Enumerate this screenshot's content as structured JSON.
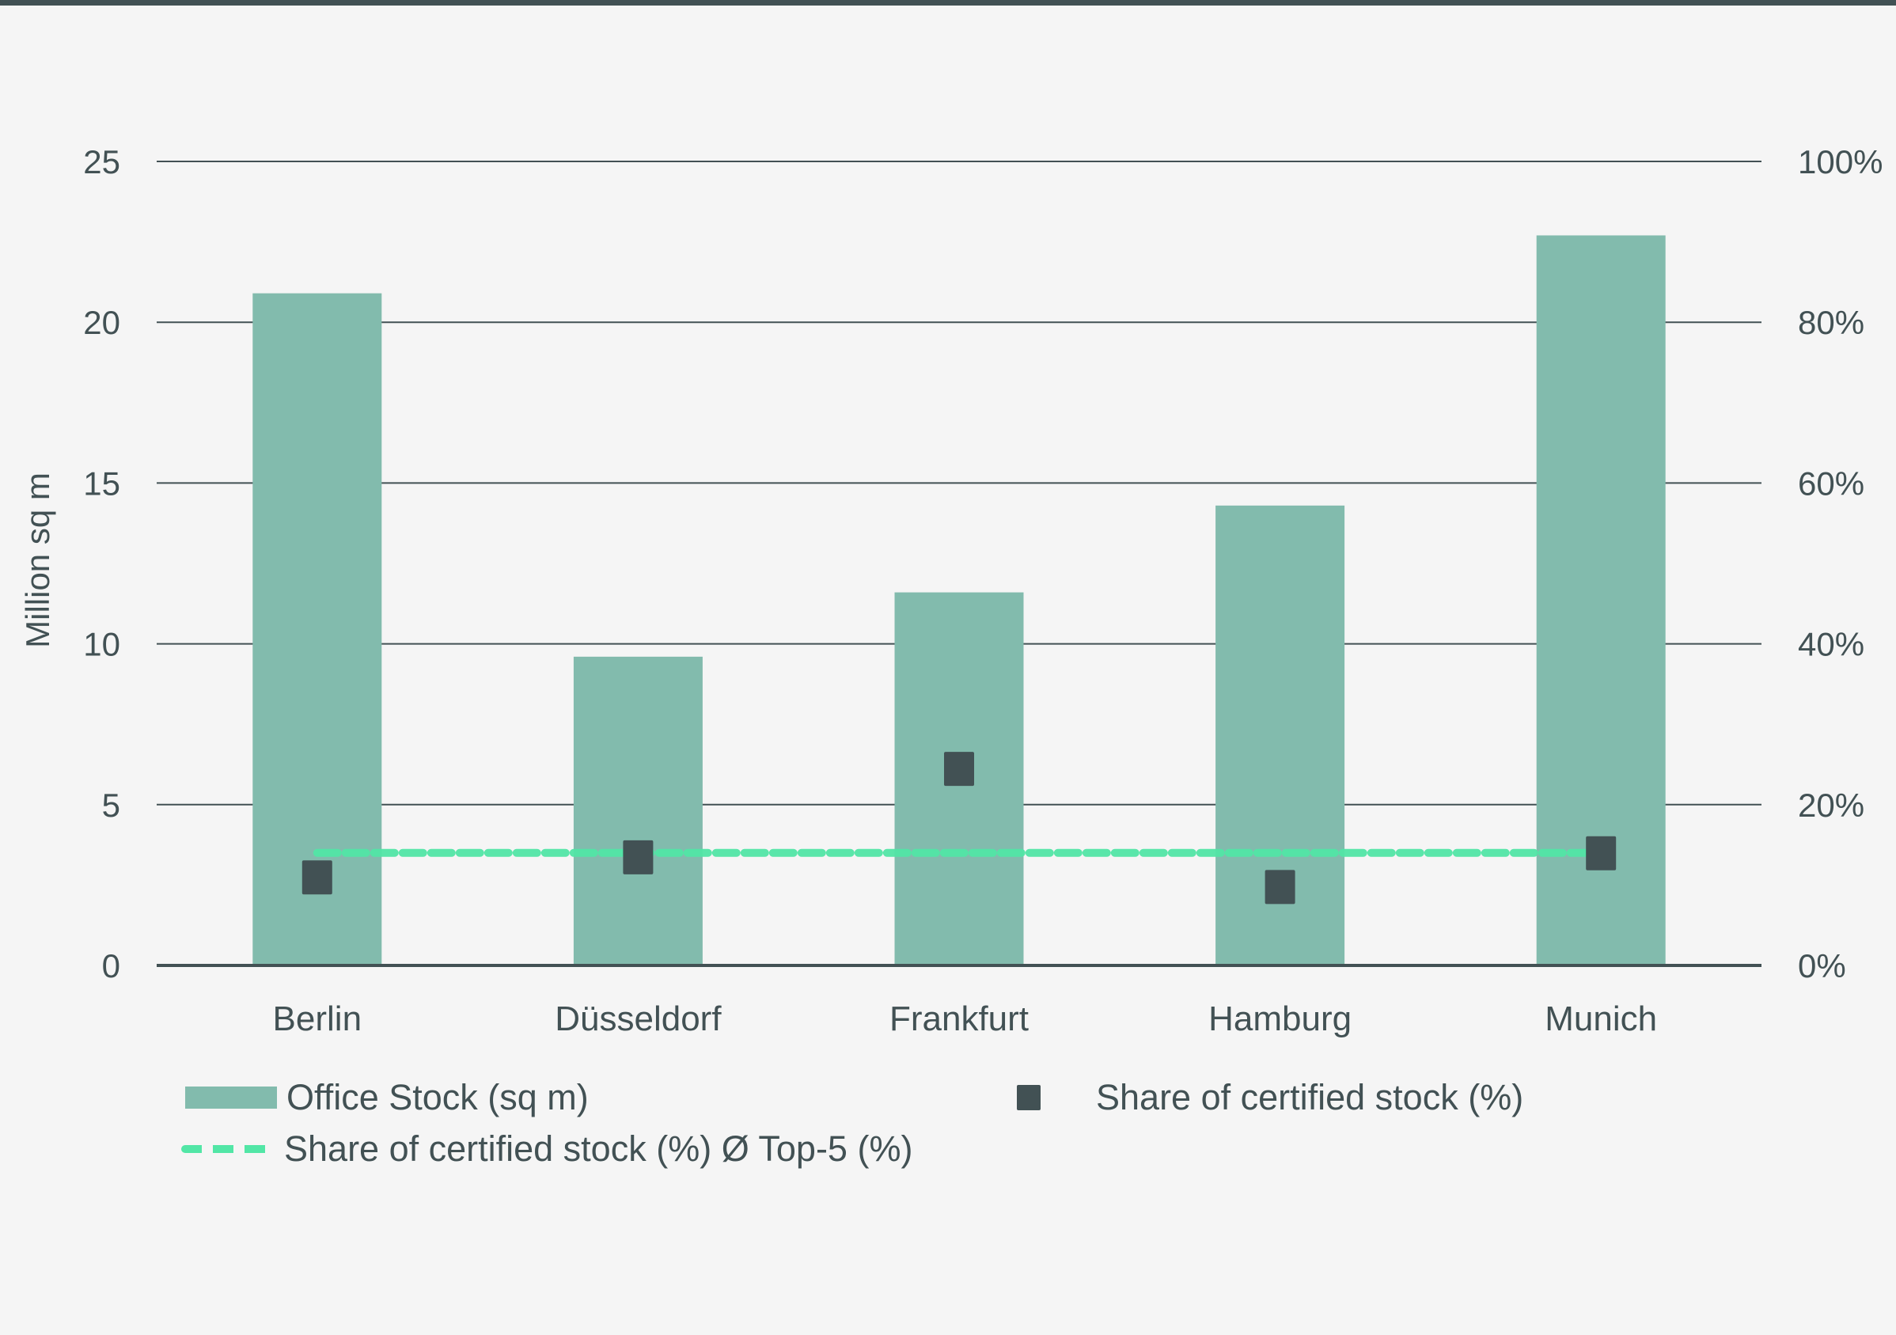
{
  "chart_data": {
    "type": "bar",
    "title": "",
    "categories": [
      "Berlin",
      "Düsseldorf",
      "Frankfurt",
      "Hamburg",
      "Munich"
    ],
    "series": [
      {
        "name": "Office Stock (sq m)",
        "type": "bar",
        "axis": "left",
        "color": "#82bbad",
        "values": [
          20.9,
          9.6,
          11.6,
          14.3,
          22.7
        ]
      },
      {
        "name": "Share of certified stock (%)",
        "type": "scatter",
        "marker": "square",
        "axis": "right",
        "color": "#425154",
        "values": [
          11,
          13.5,
          24.5,
          9.8,
          14
        ]
      },
      {
        "name": "Share of certified stock (%) Ø Top-5 (%)",
        "type": "line",
        "style": "dashed",
        "axis": "right",
        "color": "#52e6a6",
        "values": [
          14,
          14,
          14,
          14,
          14
        ]
      }
    ],
    "ylabel": "Million sq m",
    "ylim": [
      0,
      25
    ],
    "yticks": [
      "0",
      "5",
      "10",
      "15",
      "20",
      "25"
    ],
    "y2lim": [
      0,
      100
    ],
    "y2ticks": [
      "0%",
      "20%",
      "40%",
      "60%",
      "80%",
      "100%"
    ],
    "grid": true,
    "legend_position": "bottom"
  },
  "legend": {
    "office_stock": "Office Stock (sq m)",
    "share_certified": "Share of certified stock (%)",
    "share_avg": "Share of certified stock (%) Ø Top-5 (%)"
  },
  "colors": {
    "bar": "#82bbad",
    "marker": "#425154",
    "avg_line": "#52e6a6",
    "axis": "#425154",
    "background": "#f5f5f5"
  }
}
